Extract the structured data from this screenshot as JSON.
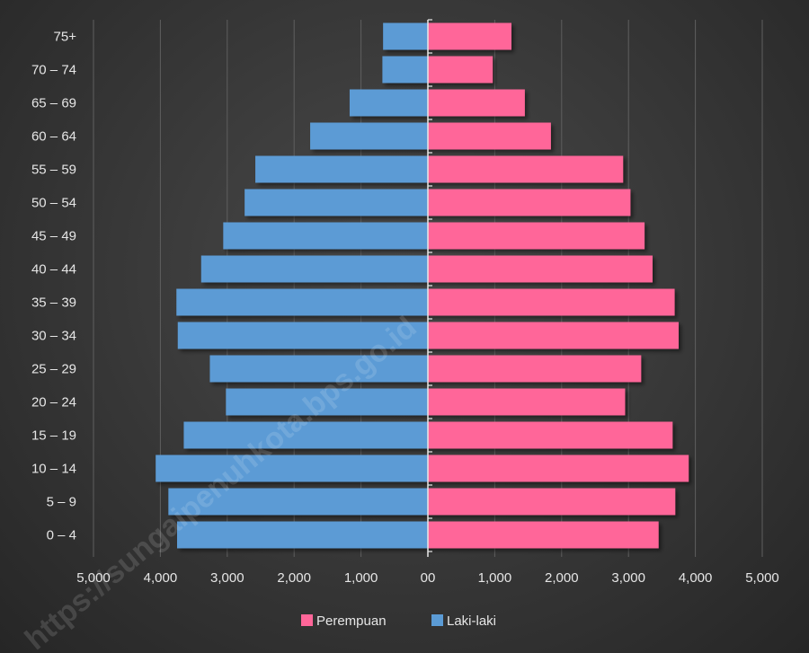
{
  "chart_data": {
    "type": "bar",
    "orientation": "horizontal",
    "layout": "population-pyramid",
    "categories": [
      "0 – 4",
      "5 – 9",
      "10 – 14",
      "15 – 19",
      "20 – 24",
      "25 – 29",
      "30 – 34",
      "35 – 39",
      "40 – 44",
      "45 – 49",
      "50 – 54",
      "55 – 59",
      "60 – 64",
      "65 – 69",
      "70 – 74",
      "75+"
    ],
    "series": [
      {
        "name": "Laki-laki",
        "side": "left",
        "color": "#5b9bd5",
        "values": [
          3750,
          3880,
          4070,
          3650,
          3020,
          3260,
          3740,
          3760,
          3390,
          3060,
          2740,
          2580,
          1760,
          1170,
          680,
          670
        ]
      },
      {
        "name": "Perempuan",
        "side": "right",
        "color": "#ff6699",
        "values": [
          3450,
          3700,
          3900,
          3660,
          2950,
          3190,
          3750,
          3690,
          3360,
          3240,
          3030,
          2920,
          1840,
          1450,
          970,
          1250
        ]
      }
    ],
    "xlim": [
      -5000,
      5000
    ],
    "x_tick_labels": [
      "5,000",
      "4,000",
      "3,000",
      "2,000",
      "1,000",
      "00",
      "1,000",
      "2,000",
      "3,000",
      "4,000",
      "5,000"
    ],
    "grid": true,
    "legend_position": "bottom",
    "legend_order": [
      "Perempuan",
      "Laki-laki"
    ],
    "watermark": "https://sungaipenuhkota.bps.go.id"
  }
}
